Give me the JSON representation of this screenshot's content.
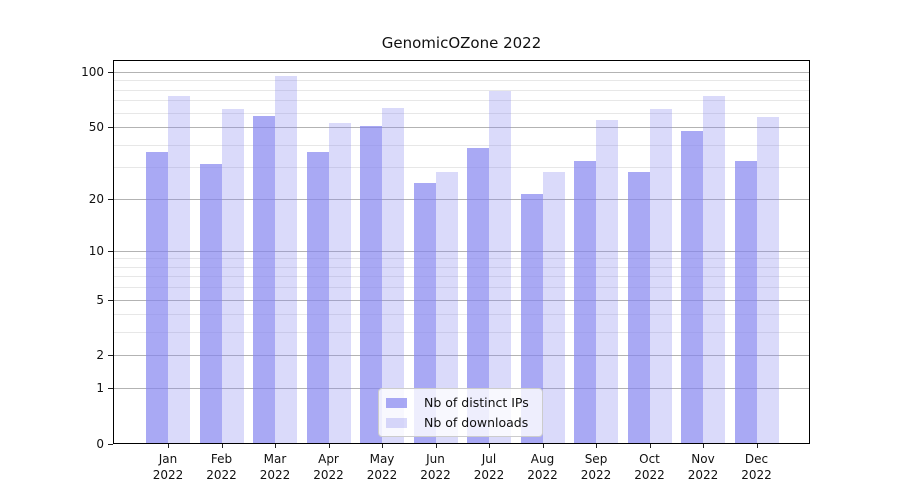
{
  "chart_data": {
    "type": "bar",
    "title": "GenomicOZone 2022",
    "categories": [
      "Jan 2022",
      "Feb 2022",
      "Mar 2022",
      "Apr 2022",
      "May 2022",
      "Jun 2022",
      "Jul 2022",
      "Aug 2022",
      "Sep 2022",
      "Oct 2022",
      "Nov 2022",
      "Dec 2022"
    ],
    "series": [
      {
        "name": "Nb of distinct IPs",
        "values": [
          36,
          31,
          57,
          36,
          50,
          24,
          38,
          21,
          32,
          28,
          47,
          32
        ],
        "color": "rgba(132,132,240,0.70)"
      },
      {
        "name": "Nb of downloads",
        "values": [
          73,
          62,
          94,
          52,
          63,
          28,
          78,
          28,
          54,
          62,
          73,
          56
        ],
        "color": "rgba(132,132,240,0.30)"
      }
    ],
    "xlabel": "",
    "ylabel": "",
    "yscale": "symlog-log1p",
    "ylim": [
      0,
      116
    ],
    "yticks_major": [
      0,
      1,
      2,
      5,
      10,
      20,
      50,
      100
    ],
    "yticks_minor": [
      3,
      4,
      6,
      7,
      8,
      9,
      30,
      40,
      60,
      70,
      80,
      90
    ],
    "grid": true,
    "legend_position": "lower center",
    "colors": {
      "grid_major": "#b3b3b3",
      "grid_minor": "#e7e7e7",
      "axis_border": "#000000",
      "text": "#111111"
    }
  }
}
